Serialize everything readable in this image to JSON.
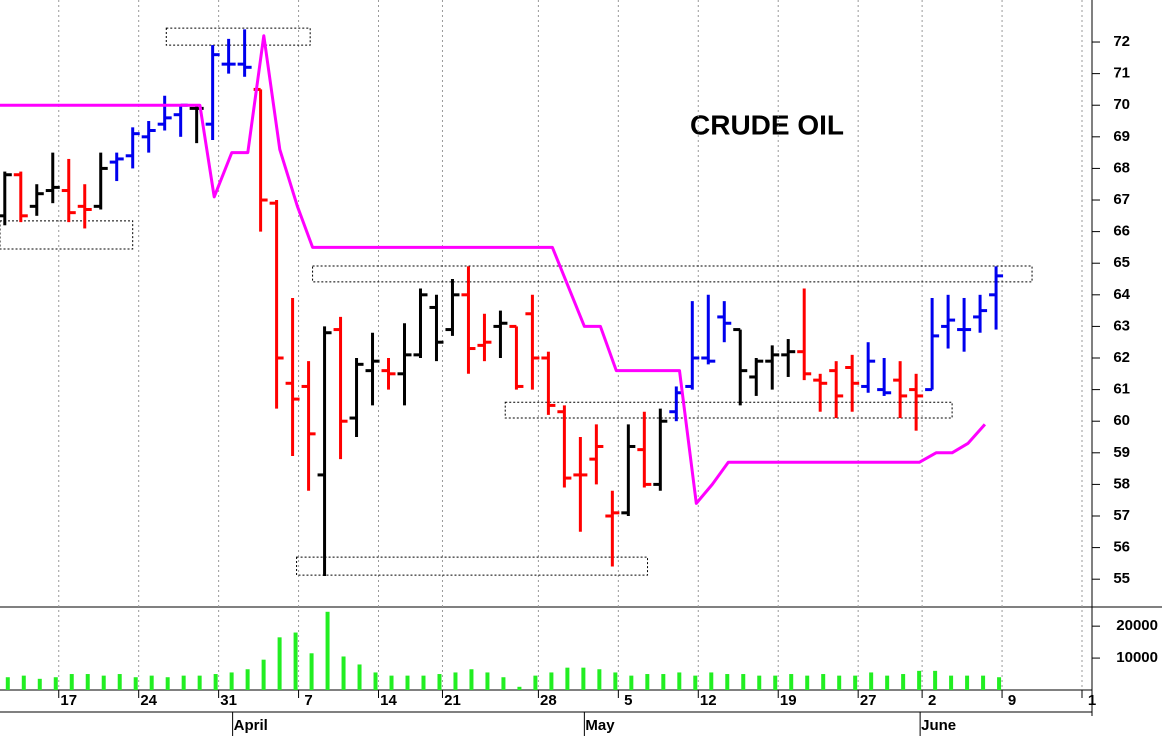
{
  "chart_data": {
    "type": "ohlc",
    "title": "CRUDE OIL",
    "x": [
      -4,
      -3,
      -2,
      -1,
      0,
      1,
      2,
      3,
      4,
      5,
      6,
      7,
      8,
      9,
      10,
      11,
      12,
      13,
      14,
      15,
      16,
      17,
      18,
      19,
      20,
      21,
      22,
      23,
      24,
      25,
      26,
      27,
      28,
      29,
      30,
      31,
      32,
      33,
      34,
      35,
      36,
      37,
      38,
      39,
      40,
      41,
      42,
      43,
      44,
      45,
      46,
      47,
      48,
      49,
      50,
      51,
      52,
      53,
      54,
      55,
      56,
      57,
      58
    ],
    "open": [
      66.5,
      67.8,
      66.8,
      67.3,
      67.3,
      66.8,
      66.8,
      68.2,
      68.4,
      69.0,
      69.4,
      69.7,
      69.9,
      69.4,
      71.3,
      71.3,
      70.5,
      66.9,
      61.2,
      61.1,
      58.3,
      62.9,
      60.1,
      61.6,
      61.6,
      61.5,
      62.1,
      63.6,
      62.9,
      64.0,
      62.4,
      63.0,
      63.0,
      63.4,
      62.0,
      60.3,
      58.3,
      58.8,
      57.0,
      57.1,
      59.1,
      58.0,
      60.3,
      61.1,
      62.0,
      63.3,
      62.9,
      61.4,
      61.9,
      62.1,
      62.2,
      61.3,
      61.6,
      61.7,
      61.1,
      61.0,
      61.3,
      61.0,
      61.0,
      63.0,
      62.9,
      63.3,
      64.0
    ],
    "high": [
      67.9,
      67.9,
      67.5,
      68.5,
      68.3,
      67.5,
      68.5,
      68.5,
      69.3,
      69.5,
      70.3,
      70.0,
      70.0,
      71.9,
      72.1,
      72.4,
      70.5,
      67.0,
      63.9,
      61.9,
      63.0,
      63.3,
      62.0,
      62.8,
      62.0,
      63.1,
      64.2,
      64.0,
      64.5,
      64.9,
      63.4,
      63.5,
      63.0,
      64.0,
      62.2,
      60.5,
      59.5,
      59.9,
      57.8,
      59.9,
      60.3,
      60.4,
      61.1,
      63.8,
      64.0,
      63.8,
      62.9,
      62.0,
      62.4,
      62.6,
      64.2,
      61.5,
      61.9,
      62.1,
      62.5,
      62.0,
      61.9,
      61.5,
      63.9,
      64.0,
      63.9,
      64.0,
      64.9
    ],
    "low": [
      66.2,
      66.3,
      66.5,
      66.9,
      66.3,
      66.1,
      66.7,
      67.6,
      68.0,
      68.5,
      69.2,
      69.0,
      68.8,
      68.9,
      71.0,
      70.9,
      66.0,
      60.4,
      58.9,
      57.8,
      55.1,
      58.8,
      59.5,
      60.5,
      61.0,
      60.5,
      62.0,
      61.9,
      62.7,
      61.5,
      61.9,
      62.0,
      61.0,
      61.0,
      60.2,
      57.9,
      56.5,
      58.0,
      55.4,
      57.0,
      57.9,
      57.8,
      60.0,
      61.0,
      61.8,
      62.5,
      60.5,
      60.8,
      61.0,
      61.4,
      61.3,
      60.3,
      60.1,
      60.3,
      60.9,
      60.8,
      60.1,
      59.7,
      61.0,
      62.3,
      62.2,
      62.8,
      62.9
    ],
    "close": [
      67.8,
      66.5,
      67.2,
      67.4,
      66.6,
      66.7,
      68.0,
      68.3,
      69.1,
      69.2,
      69.6,
      70.0,
      69.9,
      71.6,
      71.3,
      71.2,
      67.0,
      62.0,
      60.7,
      59.6,
      62.8,
      60.0,
      61.8,
      61.9,
      61.5,
      62.1,
      64.0,
      62.5,
      64.0,
      62.3,
      62.5,
      63.1,
      61.1,
      62.0,
      60.5,
      58.2,
      58.3,
      59.2,
      57.1,
      59.2,
      58.0,
      60.0,
      60.9,
      62.0,
      61.9,
      63.1,
      61.6,
      61.9,
      62.1,
      62.2,
      61.5,
      61.2,
      60.8,
      61.2,
      61.9,
      60.9,
      60.8,
      60.8,
      62.7,
      63.2,
      62.9,
      63.5,
      64.6
    ],
    "colors": [
      "#000000",
      "#ff0000",
      "#000000",
      "#000000",
      "#ff0000",
      "#ff0000",
      "#000000",
      "#0000ee",
      "#0000ee",
      "#0000ee",
      "#0000ee",
      "#0000ee",
      "#000000",
      "#0000ee",
      "#0000ee",
      "#0000ee",
      "#ff0000",
      "#ff0000",
      "#ff0000",
      "#ff0000",
      "#000000",
      "#ff0000",
      "#000000",
      "#000000",
      "#ff0000",
      "#000000",
      "#000000",
      "#000000",
      "#000000",
      "#ff0000",
      "#ff0000",
      "#000000",
      "#ff0000",
      "#ff0000",
      "#ff0000",
      "#ff0000",
      "#ff0000",
      "#ff0000",
      "#ff0000",
      "#000000",
      "#ff0000",
      "#000000",
      "#0000ee",
      "#0000ee",
      "#0000ee",
      "#0000ee",
      "#000000",
      "#000000",
      "#000000",
      "#000000",
      "#ff0000",
      "#ff0000",
      "#ff0000",
      "#ff0000",
      "#0000ee",
      "#0000ee",
      "#ff0000",
      "#ff0000",
      "#0000ee",
      "#0000ee",
      "#0000ee",
      "#0000ee",
      "#0000ee"
    ],
    "stop_line": {
      "color": "#ff00ff",
      "x": [
        -4.3,
        8.2,
        9.1,
        10.2,
        11.2,
        12.2,
        13.2,
        14.3,
        15.25,
        30.25,
        32.25,
        33.25,
        34.25,
        38.2,
        39.25,
        40.25,
        41.25,
        53.2,
        54.25,
        55.25,
        56.25,
        57.3
      ],
      "values": [
        70.0,
        70.0,
        67.1,
        68.5,
        68.5,
        72.2,
        68.6,
        66.8,
        65.5,
        65.5,
        63.0,
        63.0,
        61.6,
        61.6,
        57.4,
        58.0,
        58.7,
        58.7,
        59.0,
        59.0,
        59.3,
        59.9
      ]
    },
    "boxes": [
      {
        "x": [
          6.1,
          15.1
        ],
        "y": [
          71.9,
          72.44
        ]
      },
      {
        "x": [
          -4.3,
          4.0
        ],
        "y": [
          65.45,
          66.34
        ]
      },
      {
        "x": [
          15.25,
          60.25
        ],
        "y": [
          64.41,
          64.91
        ]
      },
      {
        "x": [
          27.3,
          55.25
        ],
        "y": [
          60.1,
          60.6
        ]
      },
      {
        "x": [
          14.25,
          36.2
        ],
        "y": [
          55.13,
          55.7
        ]
      }
    ],
    "xlim": [
      -4.3,
      64.0
    ],
    "xticks": [
      {
        "value": 0,
        "label": "17"
      },
      {
        "value": 5,
        "label": "24"
      },
      {
        "value": 10,
        "label": "31"
      },
      {
        "value": 15,
        "label": "7"
      },
      {
        "value": 20,
        "label": "14"
      },
      {
        "value": 24,
        "label": "21"
      },
      {
        "value": 30,
        "label": "28"
      },
      {
        "value": 35,
        "label": "5"
      },
      {
        "value": 40,
        "label": "12"
      },
      {
        "value": 45,
        "label": "19"
      },
      {
        "value": 50,
        "label": "27"
      },
      {
        "value": 54,
        "label": "2"
      },
      {
        "value": 59,
        "label": "9"
      },
      {
        "value": 64,
        "label": "1"
      }
    ],
    "months": [
      {
        "value": 11,
        "label": "April"
      },
      {
        "value": 33,
        "label": "May"
      },
      {
        "value": 54,
        "label": "June"
      }
    ],
    "ylim": [
      54.12,
      73.33
    ],
    "yticks": [
      55,
      56,
      57,
      58,
      59,
      60,
      61,
      62,
      63,
      64,
      65,
      66,
      67,
      68,
      69,
      70,
      71,
      72
    ],
    "grid": true,
    "volume": {
      "color": "#22ee22",
      "values": [
        4000,
        4500,
        3500,
        4000,
        5000,
        5000,
        4500,
        5000,
        4000,
        4500,
        4000,
        4500,
        4500,
        5000,
        5500,
        6500,
        9500,
        16500,
        18000,
        11500,
        24500,
        10500,
        8000,
        5500,
        4500,
        4500,
        4500,
        5000,
        5500,
        6500,
        5500,
        4000,
        1000,
        4500,
        5500,
        7000,
        7000,
        6500,
        5500,
        4500,
        5000,
        5000,
        5500,
        4500,
        5500,
        5000,
        5000,
        4500,
        4500,
        5000,
        4500,
        5000,
        4500,
        4500,
        5500,
        4500,
        5000,
        6000,
        6000,
        4500,
        4500,
        4500,
        4000
      ],
      "ylim": [
        0,
        26000
      ],
      "yticks": [
        10000,
        20000
      ]
    }
  }
}
